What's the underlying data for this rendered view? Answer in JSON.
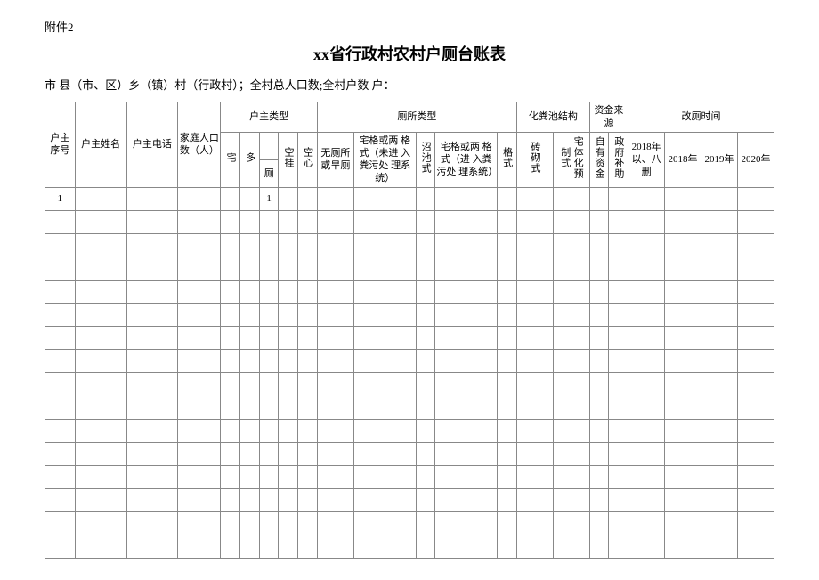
{
  "attachment_label": "附件2",
  "title": "xx省行政村农村户厕台账表",
  "subheader": "市  县（市、区）乡（镇）村（行政村）；全村总人口数;全村户数 户：",
  "headers": {
    "seq": "户主序号",
    "name": "户主姓名",
    "phone": "户主电话",
    "family_pop": "家庭人口数（人）",
    "owner_type": "户主类型",
    "toilet_type": "厕所类型",
    "pit_structure": "化粪池结构",
    "funding": "资金来 源",
    "reform_time": "改厕时间",
    "owner_sub": {
      "zhai": "宅",
      "duo": "多",
      "ce": "厕",
      "kongxin": "空挂",
      "kongxin2": "空心"
    },
    "toilet_sub": {
      "wuce": "无厕所或旱厕",
      "zhaige1": "宅格或两 格式（未进 入粪污处 理系统）",
      "zhao": "沼池式",
      "zhaige2": "宅格或两 格式（进 入粪污处 理系统）",
      "geshi": "格式"
    },
    "pit_sub": {
      "zhuanqi": "砖砌式",
      "zhaiti": "宅体化预制式"
    },
    "fund_sub": {
      "self": "自有资金",
      "gov": "政府补助"
    },
    "time_sub": {
      "y2018b": "2018年以、八删",
      "y2018": "2018年",
      "y2019": "2019年",
      "y2020": "2020年"
    }
  },
  "first_row": {
    "seq": "1",
    "ce_val": "1"
  },
  "empty_row_count": 15,
  "column_count": 22
}
